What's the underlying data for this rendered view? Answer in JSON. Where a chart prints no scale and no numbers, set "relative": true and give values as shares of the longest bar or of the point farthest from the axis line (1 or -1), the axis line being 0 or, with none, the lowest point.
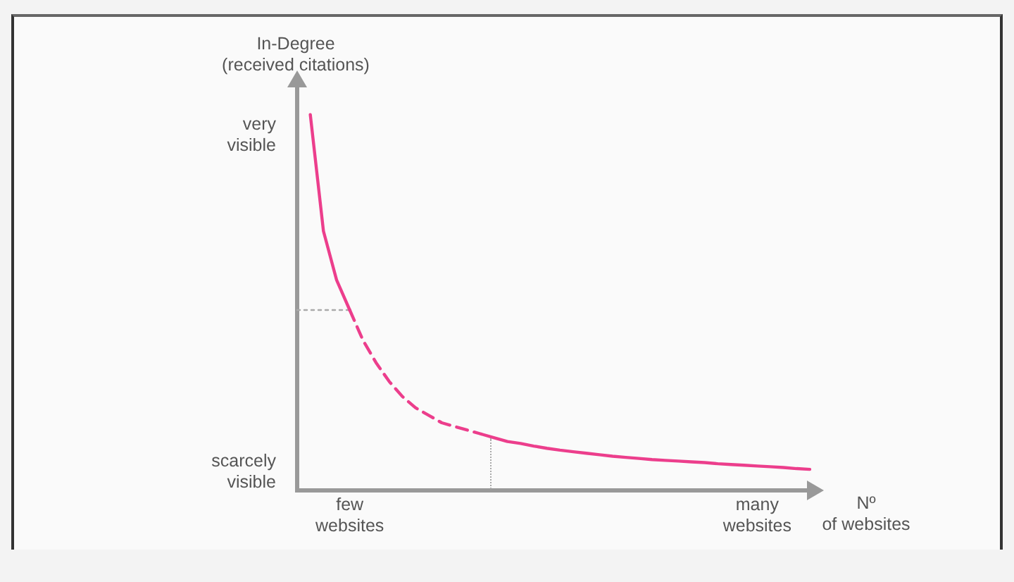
{
  "chart_data": {
    "type": "line",
    "relative": true,
    "ylabel": "In-Degree (received citations)",
    "xlabel": "Nº of websites",
    "annotations": [
      "very visible",
      "scarcely visible"
    ],
    "categories": [
      null,
      null,
      null,
      null,
      "few websites",
      null,
      null,
      null,
      null,
      null,
      null,
      null,
      null,
      null,
      null,
      null,
      null,
      null,
      null,
      null,
      null,
      null,
      null,
      null,
      null,
      null,
      null,
      null,
      null,
      null,
      null,
      null,
      null,
      null,
      null,
      "many websites",
      null,
      null,
      null,
      null
    ],
    "grid": false,
    "legend": false,
    "marker": "none",
    "series": [
      {
        "color": "#ec3e8c",
        "line_style": "solid",
        "values": [
          null,
          1,
          0.69,
          0.56,
          0.48,
          null,
          null,
          null,
          null,
          null,
          null,
          null,
          null,
          null,
          null,
          null,
          null,
          null,
          null,
          null,
          null,
          null,
          null,
          null,
          null,
          null,
          null,
          null,
          null,
          null,
          null,
          null,
          null,
          null,
          null,
          null,
          null,
          null,
          null,
          null
        ]
      },
      {
        "color": "#ec3e8c",
        "line_style": "dashed",
        "values": [
          null,
          null,
          null,
          null,
          0.48,
          0.4,
          0.34,
          0.29,
          0.25,
          0.22,
          0.2,
          0.18,
          0.17,
          0.16,
          0.15,
          null,
          null,
          null,
          null,
          null,
          null,
          null,
          null,
          null,
          null,
          null,
          null,
          null,
          null,
          null,
          null,
          null,
          null,
          null,
          null,
          null,
          null,
          null,
          null,
          null
        ]
      },
      {
        "color": "#ec3e8c",
        "line_style": "solid",
        "values": [
          null,
          null,
          null,
          null,
          null,
          null,
          null,
          null,
          null,
          null,
          null,
          null,
          null,
          null,
          0.15,
          0.14,
          0.13,
          0.125,
          0.118,
          0.112,
          0.107,
          0.103,
          0.099,
          0.095,
          0.091,
          0.088,
          0.085,
          0.082,
          0.08,
          0.078,
          0.076,
          0.074,
          0.071,
          0.069,
          0.067,
          0.065,
          0.063,
          0.061,
          0.058,
          0.056
        ]
      },
      {
        "color": "#aaaaaa",
        "line_style": "dotted",
        "values": [
          0.48,
          0.48,
          0.48,
          0.48,
          0.48,
          null,
          null,
          null,
          null,
          null,
          null,
          null,
          null,
          null,
          null,
          null,
          null,
          null,
          null,
          null,
          null,
          null,
          null,
          null,
          null,
          null,
          null,
          null,
          null,
          null,
          null,
          null,
          null,
          null,
          null,
          null,
          null,
          null,
          null,
          null
        ]
      }
    ]
  }
}
